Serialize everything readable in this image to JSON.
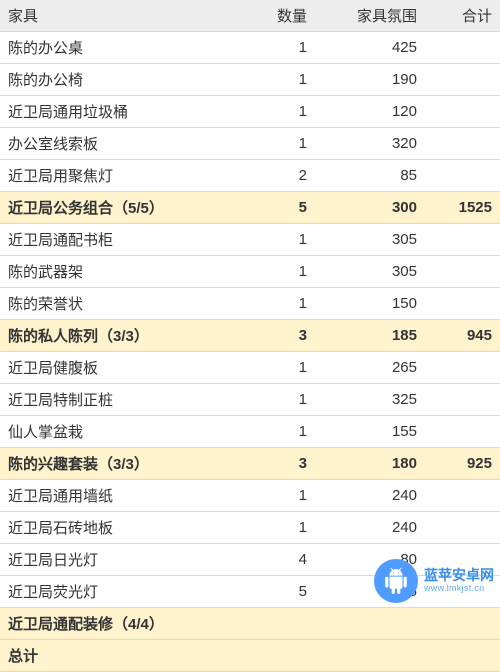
{
  "table": {
    "columns": [
      "家具",
      "数量",
      "家具氛围",
      "合计"
    ],
    "rows": [
      {
        "type": "item",
        "name": "陈的办公桌",
        "qty": 1,
        "atmo": 425,
        "total": ""
      },
      {
        "type": "item",
        "name": "陈的办公椅",
        "qty": 1,
        "atmo": 190,
        "total": ""
      },
      {
        "type": "item",
        "name": "近卫局通用垃圾桶",
        "qty": 1,
        "atmo": 120,
        "total": ""
      },
      {
        "type": "item",
        "name": "办公室线索板",
        "qty": 1,
        "atmo": 320,
        "total": ""
      },
      {
        "type": "item",
        "name": "近卫局用聚焦灯",
        "qty": 2,
        "atmo": 85,
        "total": ""
      },
      {
        "type": "group",
        "name": "近卫局公务组合（5/5）",
        "qty": 5,
        "atmo": 300,
        "total": 1525
      },
      {
        "type": "item",
        "name": "近卫局通配书柜",
        "qty": 1,
        "atmo": 305,
        "total": ""
      },
      {
        "type": "item",
        "name": "陈的武器架",
        "qty": 1,
        "atmo": 305,
        "total": ""
      },
      {
        "type": "item",
        "name": "陈的荣誉状",
        "qty": 1,
        "atmo": 150,
        "total": ""
      },
      {
        "type": "group",
        "name": "陈的私人陈列（3/3）",
        "qty": 3,
        "atmo": 185,
        "total": 945
      },
      {
        "type": "item",
        "name": "近卫局健腹板",
        "qty": 1,
        "atmo": 265,
        "total": ""
      },
      {
        "type": "item",
        "name": "近卫局特制正桩",
        "qty": 1,
        "atmo": 325,
        "total": ""
      },
      {
        "type": "item",
        "name": "仙人掌盆栽",
        "qty": 1,
        "atmo": 155,
        "total": ""
      },
      {
        "type": "group",
        "name": "陈的兴趣套装（3/3）",
        "qty": 3,
        "atmo": 180,
        "total": 925
      },
      {
        "type": "item",
        "name": "近卫局通用墙纸",
        "qty": 1,
        "atmo": 240,
        "total": ""
      },
      {
        "type": "item",
        "name": "近卫局石砖地板",
        "qty": 1,
        "atmo": 240,
        "total": ""
      },
      {
        "type": "item",
        "name": "近卫局日光灯",
        "qty": 4,
        "atmo": 80,
        "total": ""
      },
      {
        "type": "item",
        "name": "近卫局荧光灯",
        "qty": 5,
        "atmo": 85,
        "total": ""
      },
      {
        "type": "group",
        "name": "近卫局通配装修（4/4）",
        "qty": "",
        "atmo": "",
        "total": ""
      },
      {
        "type": "grand",
        "name": "总计",
        "qty": "",
        "atmo": "",
        "total": ""
      }
    ],
    "colors": {
      "header_bg": "#ededed",
      "group_bg": "#fff3cd",
      "border": "#d9d9d9",
      "text": "#333333"
    }
  },
  "watermark": {
    "line1": "蓝苹安卓网",
    "line2": "www.lmkjst.cn"
  }
}
